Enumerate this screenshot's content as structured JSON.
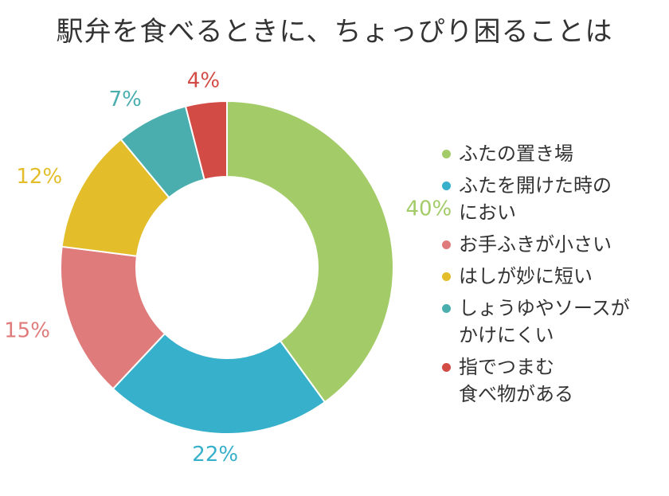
{
  "chart_data": {
    "type": "pie",
    "donut": true,
    "title": "駅弁を食べるときに、ちょっぴり困ることは",
    "legend_position": "right",
    "slices": [
      {
        "label": "ふたの置き場",
        "value": 40,
        "display": "40%",
        "color": "#a3cc69"
      },
      {
        "label": "ふたを開けた時の\nにおい",
        "value": 22,
        "display": "22%",
        "color": "#36b0cb"
      },
      {
        "label": "お手ふきが小さい",
        "value": 15,
        "display": "15%",
        "color": "#e07b7b"
      },
      {
        "label": "はしが妙に短い",
        "value": 12,
        "display": "12%",
        "color": "#e3be2a"
      },
      {
        "label": "しょうゆやソースが\nかけにくい",
        "value": 7,
        "display": "7%",
        "color": "#4aaeaf"
      },
      {
        "label": "指でつまむ\n食べ物がある",
        "value": 4,
        "display": "4%",
        "color": "#d24c45"
      }
    ]
  }
}
